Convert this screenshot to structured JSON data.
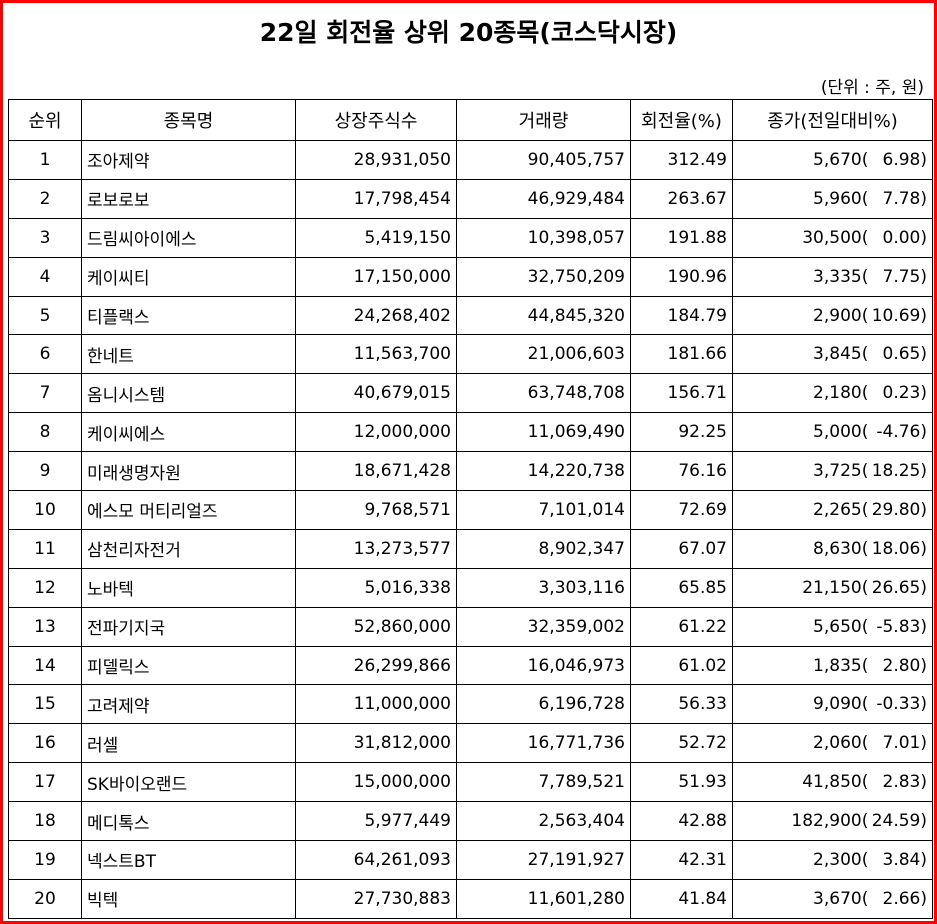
{
  "title": "22일 회전율 상위 20종목(코스닥시장)",
  "unit": "(단위 : 주, 원)",
  "columns": [
    "순위",
    "종목명",
    "상장주식수",
    "거래량",
    "회전율(%)",
    "종가(전일대비%)"
  ],
  "rows": [
    {
      "rank": "1",
      "name": "조아제약",
      "listed": "28,931,050",
      "volume": "90,405,757",
      "turnover": "312.49",
      "close": "5,670",
      "change": "6.98"
    },
    {
      "rank": "2",
      "name": "로보로보",
      "listed": "17,798,454",
      "volume": "46,929,484",
      "turnover": "263.67",
      "close": "5,960",
      "change": "7.78"
    },
    {
      "rank": "3",
      "name": "드림씨아이에스",
      "listed": "5,419,150",
      "volume": "10,398,057",
      "turnover": "191.88",
      "close": "30,500",
      "change": "0.00"
    },
    {
      "rank": "4",
      "name": "케이씨티",
      "listed": "17,150,000",
      "volume": "32,750,209",
      "turnover": "190.96",
      "close": "3,335",
      "change": "7.75"
    },
    {
      "rank": "5",
      "name": "티플랙스",
      "listed": "24,268,402",
      "volume": "44,845,320",
      "turnover": "184.79",
      "close": "2,900",
      "change": "10.69"
    },
    {
      "rank": "6",
      "name": "한네트",
      "listed": "11,563,700",
      "volume": "21,006,603",
      "turnover": "181.66",
      "close": "3,845",
      "change": "0.65"
    },
    {
      "rank": "7",
      "name": "옴니시스템",
      "listed": "40,679,015",
      "volume": "63,748,708",
      "turnover": "156.71",
      "close": "2,180",
      "change": "0.23"
    },
    {
      "rank": "8",
      "name": "케이씨에스",
      "listed": "12,000,000",
      "volume": "11,069,490",
      "turnover": "92.25",
      "close": "5,000",
      "change": "-4.76"
    },
    {
      "rank": "9",
      "name": "미래생명자원",
      "listed": "18,671,428",
      "volume": "14,220,738",
      "turnover": "76.16",
      "close": "3,725",
      "change": "18.25"
    },
    {
      "rank": "10",
      "name": "에스모 머티리얼즈",
      "listed": "9,768,571",
      "volume": "7,101,014",
      "turnover": "72.69",
      "close": "2,265",
      "change": "29.80"
    },
    {
      "rank": "11",
      "name": "삼천리자전거",
      "listed": "13,273,577",
      "volume": "8,902,347",
      "turnover": "67.07",
      "close": "8,630",
      "change": "18.06"
    },
    {
      "rank": "12",
      "name": "노바텍",
      "listed": "5,016,338",
      "volume": "3,303,116",
      "turnover": "65.85",
      "close": "21,150",
      "change": "26.65"
    },
    {
      "rank": "13",
      "name": "전파기지국",
      "listed": "52,860,000",
      "volume": "32,359,002",
      "turnover": "61.22",
      "close": "5,650",
      "change": "-5.83"
    },
    {
      "rank": "14",
      "name": "피델릭스",
      "listed": "26,299,866",
      "volume": "16,046,973",
      "turnover": "61.02",
      "close": "1,835",
      "change": "2.80"
    },
    {
      "rank": "15",
      "name": "고려제약",
      "listed": "11,000,000",
      "volume": "6,196,728",
      "turnover": "56.33",
      "close": "9,090",
      "change": "-0.33"
    },
    {
      "rank": "16",
      "name": "러셀",
      "listed": "31,812,000",
      "volume": "16,771,736",
      "turnover": "52.72",
      "close": "2,060",
      "change": "7.01"
    },
    {
      "rank": "17",
      "name": "SK바이오랜드",
      "listed": "15,000,000",
      "volume": "7,789,521",
      "turnover": "51.93",
      "close": "41,850",
      "change": "2.83"
    },
    {
      "rank": "18",
      "name": "메디톡스",
      "listed": "5,977,449",
      "volume": "2,563,404",
      "turnover": "42.88",
      "close": "182,900",
      "change": "24.59"
    },
    {
      "rank": "19",
      "name": "넥스트BT",
      "listed": "64,261,093",
      "volume": "27,191,927",
      "turnover": "42.31",
      "close": "2,300",
      "change": "3.84"
    },
    {
      "rank": "20",
      "name": "빅텍",
      "listed": "27,730,883",
      "volume": "11,601,280",
      "turnover": "41.84",
      "close": "3,670",
      "change": "2.66"
    }
  ]
}
